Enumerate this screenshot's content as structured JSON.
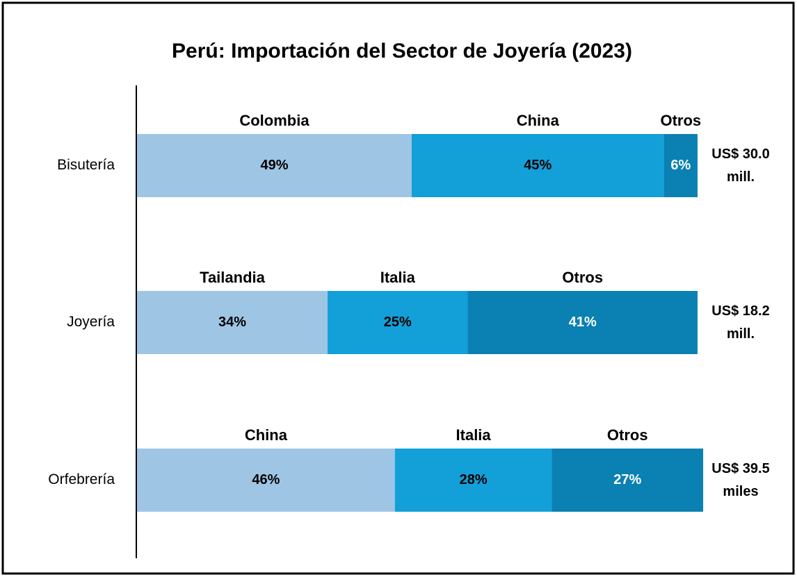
{
  "chart_data": {
    "type": "stacked-bar-horizontal",
    "title": "Perú: Importación del Sector de Joyería (2023)",
    "categories": [
      "Bisutería",
      "Joyería",
      "Orfebrería"
    ],
    "xlim": [
      0,
      100
    ],
    "series": [
      {
        "color": "#9fc5e5",
        "label_color": "#000000",
        "labels": [
          "Colombia",
          "Tailandia",
          "China"
        ],
        "values": [
          49,
          34,
          46
        ],
        "value_labels": [
          "49%",
          "34%",
          "46%"
        ]
      },
      {
        "color": "#139fd8",
        "label_color": "#000000",
        "labels": [
          "China",
          "Italia",
          "Italia"
        ],
        "values": [
          45,
          25,
          28
        ],
        "value_labels": [
          "45%",
          "25%",
          "28%"
        ]
      },
      {
        "color": "#0a80b3",
        "label_color": "#ffffff",
        "labels": [
          "Otros",
          "Otros",
          "Otros"
        ],
        "values": [
          6,
          41,
          27
        ],
        "value_labels": [
          "6%",
          "41%",
          "27%"
        ]
      }
    ],
    "totals": [
      [
        "US$ 30.0",
        "mill."
      ],
      [
        "US$ 18.2",
        "mill."
      ],
      [
        "US$ 39.5",
        "miles"
      ]
    ]
  }
}
